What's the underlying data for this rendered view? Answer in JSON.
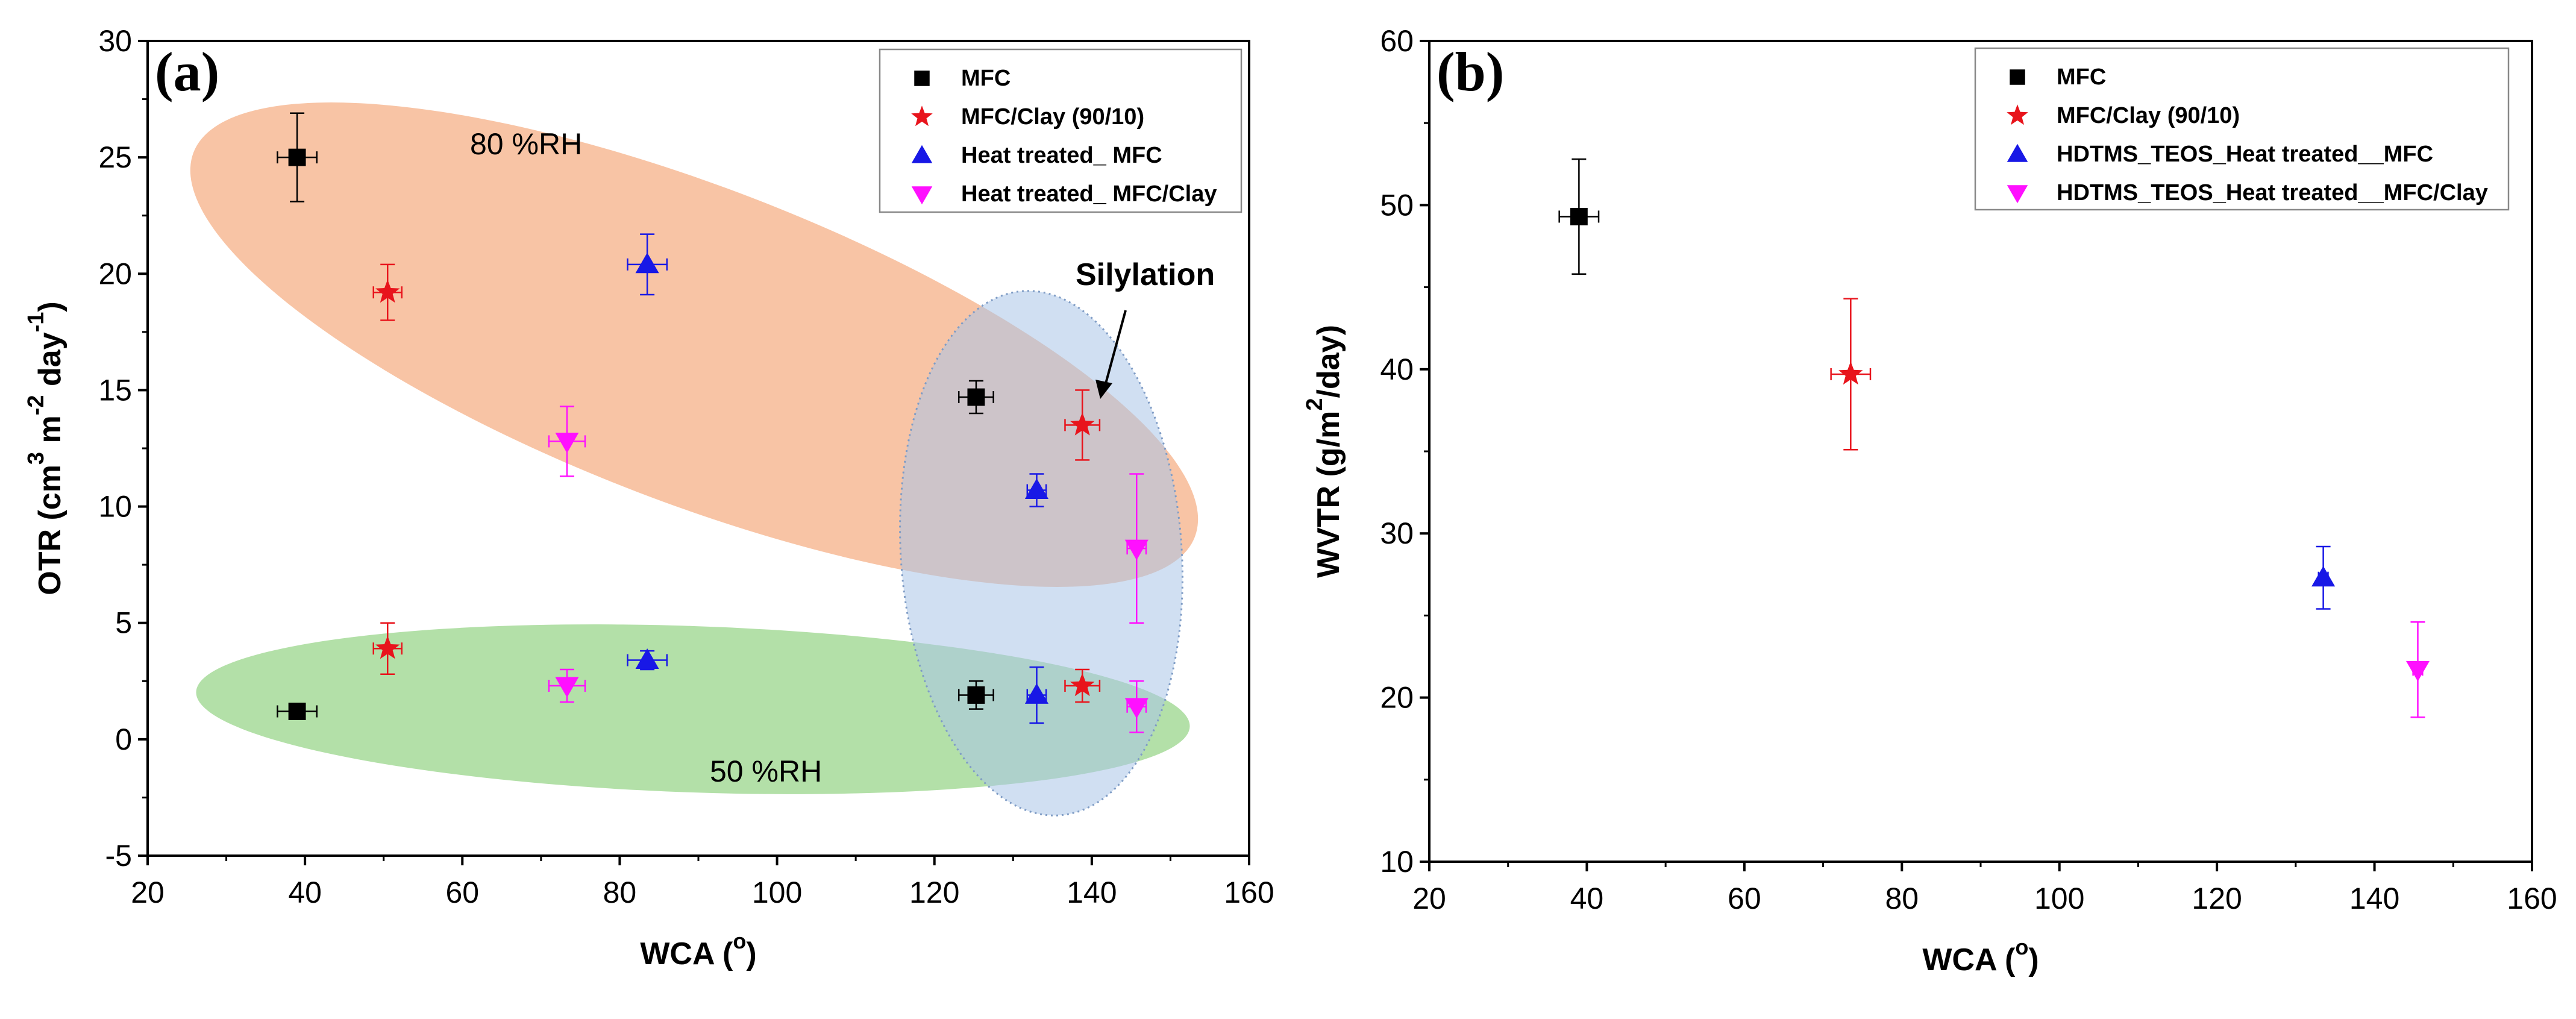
{
  "chart_data": [
    {
      "type": "scatter",
      "panel_label": "(a)",
      "xlabel": {
        "main": "WCA (",
        "sup": "o",
        "end": ")"
      },
      "ylabel": {
        "p1": "OTR (cm",
        "s1": "3",
        "p2": " m",
        "s2": "-2",
        "p3": " day",
        "s3": "-1",
        "p4": ")"
      },
      "xlim": [
        20,
        160
      ],
      "ylim": [
        -5,
        30
      ],
      "x_ticks": [
        20,
        40,
        60,
        80,
        100,
        120,
        140,
        160
      ],
      "y_ticks": [
        -5,
        0,
        5,
        10,
        15,
        20,
        25,
        30
      ],
      "legend_position": "top-right",
      "series": [
        {
          "name": "MFC",
          "marker": "square",
          "color": "#000000",
          "points": [
            {
              "x": 39,
              "y": 25.0,
              "xerr": 2.5,
              "yerr": 1.9
            },
            {
              "x": 125.3,
              "y": 14.7,
              "xerr": 2.2,
              "yerr": 0.7
            },
            {
              "x": 39,
              "y": 1.2,
              "xerr": 2.5,
              "yerr": 0.3
            },
            {
              "x": 125.3,
              "y": 1.9,
              "xerr": 2.2,
              "yerr": 0.6
            }
          ]
        },
        {
          "name": "MFC/Clay (90/10)",
          "marker": "star",
          "color": "#e8141c",
          "points": [
            {
              "x": 50.5,
              "y": 19.2,
              "xerr": 1.8,
              "yerr": 1.2
            },
            {
              "x": 138.8,
              "y": 13.5,
              "xerr": 2.2,
              "yerr": 1.5
            },
            {
              "x": 50.5,
              "y": 3.9,
              "xerr": 1.8,
              "yerr": 1.1
            },
            {
              "x": 138.8,
              "y": 2.3,
              "xerr": 2.2,
              "yerr": 0.7
            }
          ]
        },
        {
          "name": "Heat treated_ MFC",
          "marker": "triangle-up",
          "color": "#1818e6",
          "points": [
            {
              "x": 83.5,
              "y": 20.4,
              "xerr": 2.5,
              "yerr": 1.3
            },
            {
              "x": 133,
              "y": 10.7,
              "xerr": 1.2,
              "yerr": 0.7
            },
            {
              "x": 83.5,
              "y": 3.4,
              "xerr": 2.5,
              "yerr": 0.4
            },
            {
              "x": 133,
              "y": 1.9,
              "xerr": 1.2,
              "yerr": 1.2
            }
          ]
        },
        {
          "name": "Heat treated_ MFC/Clay",
          "marker": "triangle-down",
          "color": "#ff10ff",
          "points": [
            {
              "x": 73.3,
              "y": 12.8,
              "xerr": 2.3,
              "yerr": 1.5
            },
            {
              "x": 145.7,
              "y": 8.2,
              "xerr": 1.2,
              "yerr": 3.2
            },
            {
              "x": 73.3,
              "y": 2.3,
              "xerr": 2.3,
              "yerr": 0.7
            },
            {
              "x": 145.7,
              "y": 1.4,
              "xerr": 1.2,
              "yerr": 1.1
            }
          ]
        }
      ],
      "annotations": {
        "rh80": "80 %RH",
        "rh50": "50 %RH",
        "silylation": "Silylation"
      },
      "regions": [
        {
          "label": "80 %RH",
          "color": "#f5a87b"
        },
        {
          "label": "50 %RH",
          "color": "#8fd17f"
        },
        {
          "label": "Silylation",
          "color": "#a9c4e8"
        }
      ]
    },
    {
      "type": "scatter",
      "panel_label": "(b)",
      "xlabel": {
        "main": "WCA (",
        "sup": "o",
        "end": ")"
      },
      "ylabel": {
        "p1": "WVTR (g/m",
        "s1": "2",
        "p2": "/day)"
      },
      "xlim": [
        20,
        160
      ],
      "ylim": [
        10,
        60
      ],
      "x_ticks": [
        20,
        40,
        60,
        80,
        100,
        120,
        140,
        160
      ],
      "y_ticks": [
        10,
        20,
        30,
        40,
        50,
        60
      ],
      "legend_position": "top-right",
      "series": [
        {
          "name": "MFC",
          "marker": "square",
          "color": "#000000",
          "points": [
            {
              "x": 39,
              "y": 49.3,
              "xerr": 2.5,
              "yerr": 3.5
            }
          ]
        },
        {
          "name": "MFC/Clay (90/10)",
          "marker": "star",
          "color": "#e8141c",
          "points": [
            {
              "x": 73.5,
              "y": 39.7,
              "xerr": 2.5,
              "yerr": 4.6
            }
          ]
        },
        {
          "name": "HDTMS_TEOS_Heat treated__MFC",
          "marker": "triangle-up",
          "color": "#1818e6",
          "points": [
            {
              "x": 133.5,
              "y": 27.3,
              "xerr": 0.6,
              "yerr": 1.9
            }
          ]
        },
        {
          "name": "HDTMS_TEOS_Heat treated__MFC/Clay",
          "marker": "triangle-down",
          "color": "#ff10ff",
          "points": [
            {
              "x": 145.5,
              "y": 21.7,
              "xerr": 0.6,
              "yerr": 2.9
            }
          ]
        }
      ]
    }
  ]
}
